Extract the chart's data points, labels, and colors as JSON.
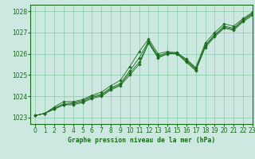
{
  "title": "Graphe pression niveau de la mer (hPa)",
  "background_color": "#cce8e0",
  "plot_bg_color": "#cce8e0",
  "grid_color": "#88ccaa",
  "line_color": "#1a6b1a",
  "marker_color": "#1a6b1a",
  "xlim": [
    -0.5,
    23
  ],
  "ylim": [
    1022.7,
    1028.3
  ],
  "yticks": [
    1023,
    1024,
    1025,
    1026,
    1027,
    1028
  ],
  "xticks": [
    0,
    1,
    2,
    3,
    4,
    5,
    6,
    7,
    8,
    9,
    10,
    11,
    12,
    13,
    14,
    15,
    16,
    17,
    18,
    19,
    20,
    21,
    22,
    23
  ],
  "series": [
    [
      1023.1,
      1023.2,
      1023.4,
      1023.6,
      1023.6,
      1023.7,
      1023.9,
      1024.0,
      1024.3,
      1024.5,
      1025.0,
      1025.5,
      1026.5,
      1025.8,
      1026.0,
      1026.0,
      1025.6,
      1025.2,
      1026.3,
      1026.8,
      1027.2,
      1027.1,
      1027.5,
      1027.8
    ],
    [
      1023.1,
      1023.2,
      1023.4,
      1023.6,
      1023.65,
      1023.75,
      1023.95,
      1024.05,
      1024.35,
      1024.55,
      1025.1,
      1025.6,
      1026.55,
      1025.85,
      1026.0,
      1026.0,
      1025.65,
      1025.25,
      1026.35,
      1026.85,
      1027.25,
      1027.15,
      1027.55,
      1027.85
    ],
    [
      1023.1,
      1023.2,
      1023.45,
      1023.65,
      1023.7,
      1023.8,
      1024.0,
      1024.1,
      1024.4,
      1024.6,
      1025.2,
      1025.8,
      1026.6,
      1025.9,
      1026.05,
      1026.05,
      1025.7,
      1025.3,
      1026.4,
      1026.9,
      1027.3,
      1027.2,
      1027.6,
      1027.9
    ],
    [
      1023.1,
      1023.2,
      1023.5,
      1023.75,
      1023.75,
      1023.85,
      1024.05,
      1024.2,
      1024.5,
      1024.75,
      1025.4,
      1026.1,
      1026.7,
      1026.0,
      1026.1,
      1026.05,
      1025.75,
      1025.35,
      1026.5,
      1027.0,
      1027.4,
      1027.3,
      1027.65,
      1027.95
    ]
  ]
}
